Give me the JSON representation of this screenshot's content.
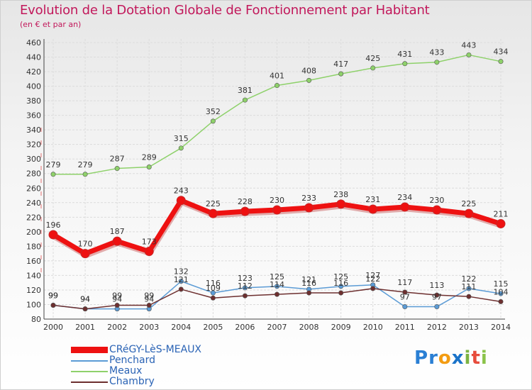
{
  "title": "Evolution de la Dotation Globale de Fonctionnement par Habitant",
  "subtitle": "(en € et par an)",
  "logo": "Proxiti",
  "colors": {
    "title": "#c2185b",
    "logo_p": "#2a7fd4",
    "logo_r": "#2a7fd4",
    "logo_o": "#f39c12",
    "logo_x": "#1a73c9",
    "logo_i": "#7cb342",
    "logo_t": "#e74c3c",
    "logo_i2": "#8bc34a"
  },
  "chart_data": {
    "type": "line",
    "title": "Evolution de la Dotation Globale de Fonctionnement par Habitant",
    "subtitle": "(en € et par an)",
    "xlabel": "",
    "ylabel": "",
    "categories": [
      "2000",
      "2001",
      "2002",
      "2003",
      "2004",
      "2005",
      "2006",
      "2007",
      "2008",
      "2009",
      "2010",
      "2011",
      "2012",
      "2013",
      "2014"
    ],
    "ylim": [
      80,
      460
    ],
    "yticks": [
      80,
      100,
      120,
      140,
      160,
      180,
      200,
      220,
      240,
      260,
      280,
      300,
      320,
      340,
      360,
      380,
      400,
      420,
      440,
      460
    ],
    "grid": true,
    "legend_position": "bottom-left",
    "series": [
      {
        "name": "CRéGY-LèS-MEAUX",
        "color": "#ee1111",
        "values": [
          196,
          170,
          187,
          173,
          243,
          225,
          228,
          230,
          233,
          238,
          231,
          234,
          230,
          225,
          211
        ],
        "labels": [
          "196",
          "170",
          "187",
          "173",
          "243",
          "225",
          "228",
          "230",
          "233",
          "238",
          "231",
          "234",
          "230",
          "225",
          "211"
        ]
      },
      {
        "name": "Penchard",
        "color": "#5b9bd5",
        "values": [
          99,
          94,
          94,
          94,
          132,
          116,
          123,
          125,
          121,
          125,
          127,
          97,
          97,
          122,
          115
        ],
        "labels": [
          "99",
          "94",
          "94",
          "94",
          "132",
          "116",
          "123",
          "125",
          "121",
          "125",
          "127",
          "97",
          "97",
          "122",
          "115"
        ]
      },
      {
        "name": "Meaux",
        "color": "#8ed16a",
        "values": [
          279,
          279,
          287,
          289,
          315,
          352,
          381,
          401,
          408,
          417,
          425,
          431,
          433,
          443,
          434
        ],
        "labels": [
          "279",
          "279",
          "287",
          "289",
          "315",
          "352",
          "381",
          "401",
          "408",
          "417",
          "425",
          "431",
          "433",
          "443",
          "434"
        ]
      },
      {
        "name": "Chambry",
        "color": "#6d2f2f",
        "values": [
          99,
          94,
          99,
          99,
          121,
          109,
          112,
          114,
          116,
          116,
          122,
          117,
          113,
          111,
          104
        ],
        "labels": [
          "99",
          "94",
          "99",
          "99",
          "121",
          "109",
          "112",
          "114",
          "116",
          "116",
          "122",
          "117",
          "113",
          "111",
          "104"
        ]
      }
    ]
  }
}
